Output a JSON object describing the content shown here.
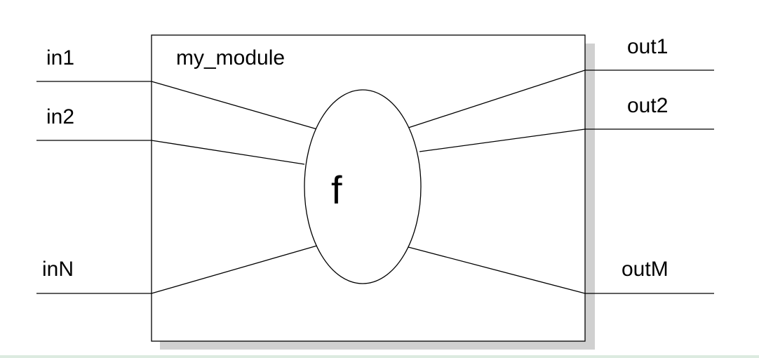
{
  "module": {
    "name": "my_module",
    "function_label": "f"
  },
  "inputs": [
    {
      "label": "in1"
    },
    {
      "label": "in2"
    },
    {
      "label": "inN"
    }
  ],
  "outputs": [
    {
      "label": "out1"
    },
    {
      "label": "out2"
    },
    {
      "label": "outM"
    }
  ],
  "colors": {
    "stroke": "#000000",
    "shadow": "#d0d0d0",
    "background": "#ffffff",
    "bottom_bar": "#dcebe0"
  }
}
